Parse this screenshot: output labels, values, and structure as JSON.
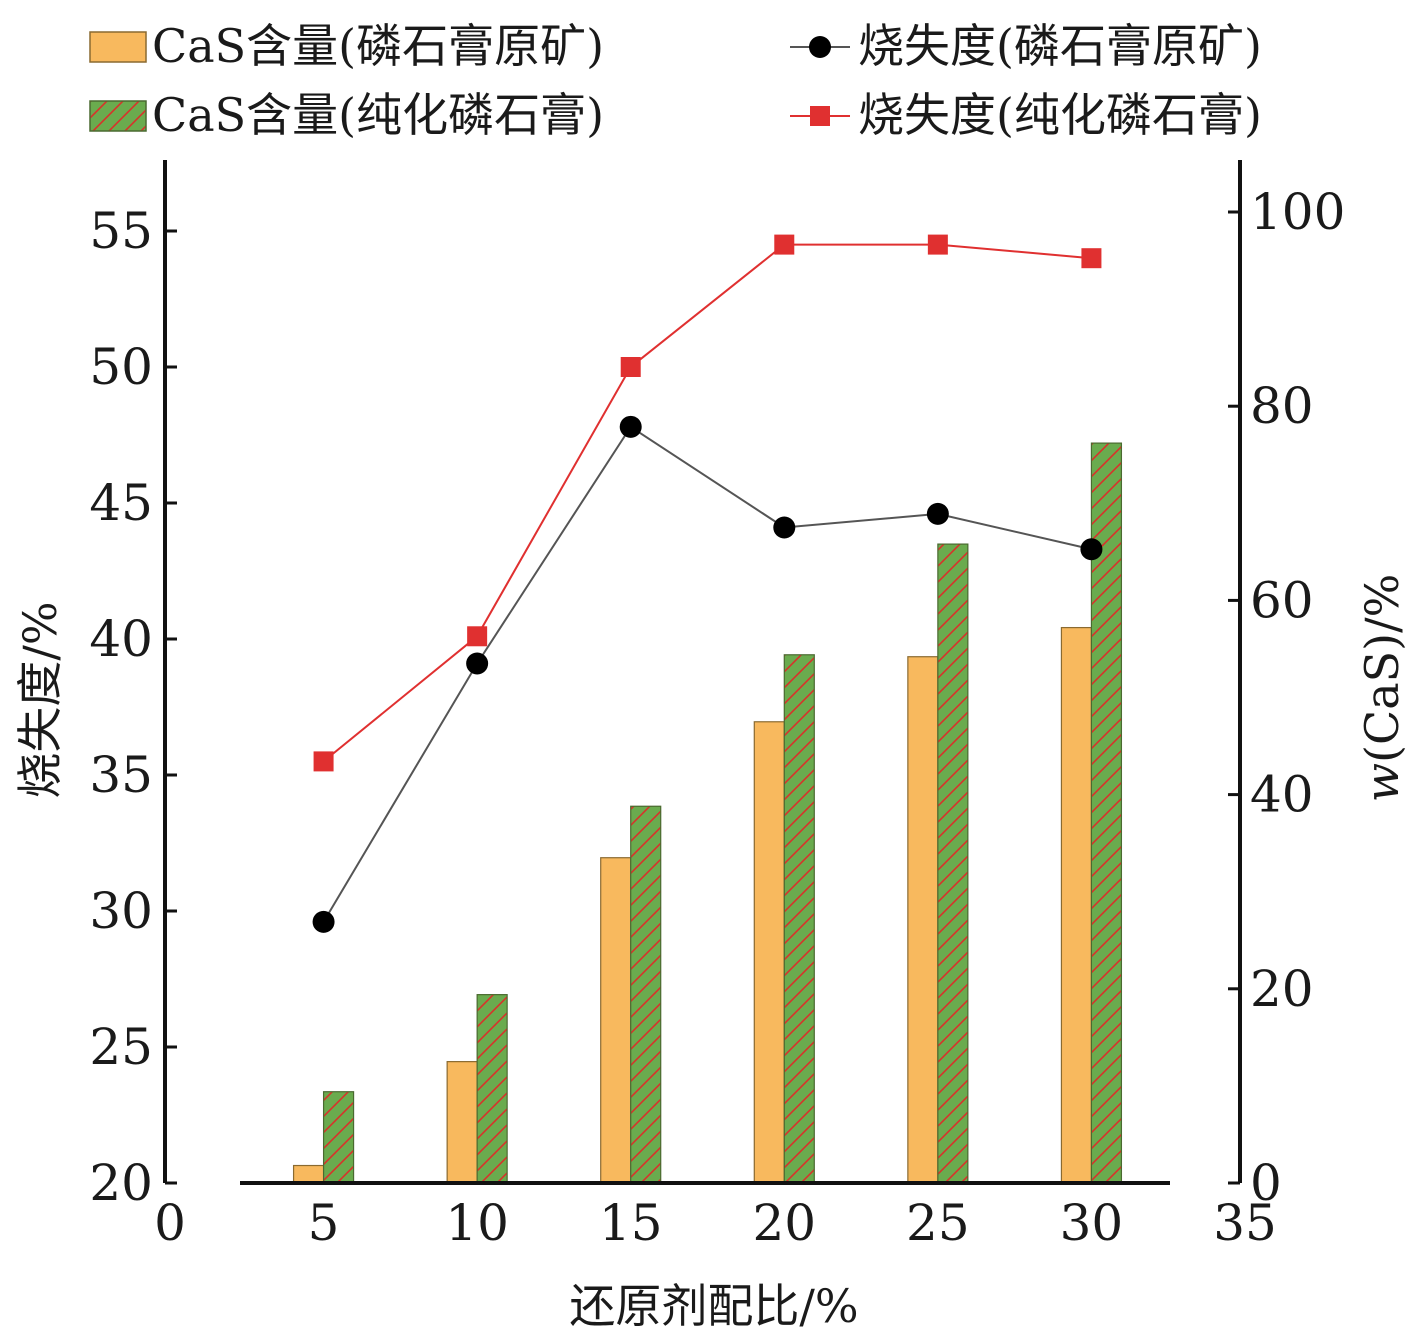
{
  "chart_data": {
    "type": "bar",
    "x_axis": {
      "label": "还原剂配比/%",
      "ticks": [
        0,
        5,
        10,
        15,
        20,
        25,
        30,
        35
      ],
      "range": [
        0,
        35
      ]
    },
    "y_left": {
      "label": "烧失度/%",
      "ticks": [
        20,
        25,
        30,
        35,
        40,
        45,
        50,
        55
      ],
      "range": [
        20,
        57.5
      ]
    },
    "y_right": {
      "label_italic": "w",
      "label_rest": "(CaS)/%",
      "ticks": [
        0,
        20,
        40,
        60,
        80,
        100
      ],
      "range": [
        0,
        105
      ]
    },
    "categories": [
      5,
      10,
      15,
      20,
      25,
      30
    ],
    "series": [
      {
        "name": "CaS含量(磷石膏原矿)",
        "kind": "bar",
        "axis": "right",
        "color": "#F8B95E",
        "values": [
          1.8,
          12.5,
          33.5,
          47.5,
          54.2,
          57.2
        ]
      },
      {
        "name": "CaS含量(纯化磷石膏)",
        "kind": "bar",
        "axis": "right",
        "color": "#6AAB4E",
        "hatch_color": "#D8322A",
        "values": [
          9.4,
          19.4,
          38.8,
          54.4,
          65.8,
          76.2
        ]
      },
      {
        "name": "烧失度(磷石膏原矿)",
        "kind": "line",
        "axis": "left",
        "color": "#000000",
        "line_color": "#555555",
        "marker": "circle",
        "values": [
          29.6,
          39.1,
          47.8,
          44.1,
          44.6,
          43.3
        ]
      },
      {
        "name": "烧失度(纯化磷石膏)",
        "kind": "line",
        "axis": "left",
        "color": "#E03030",
        "line_color": "#E03030",
        "marker": "square",
        "values": [
          35.5,
          40.1,
          50.0,
          54.5,
          54.5,
          54.0
        ]
      }
    ],
    "grid": false,
    "legend_position": "top"
  }
}
